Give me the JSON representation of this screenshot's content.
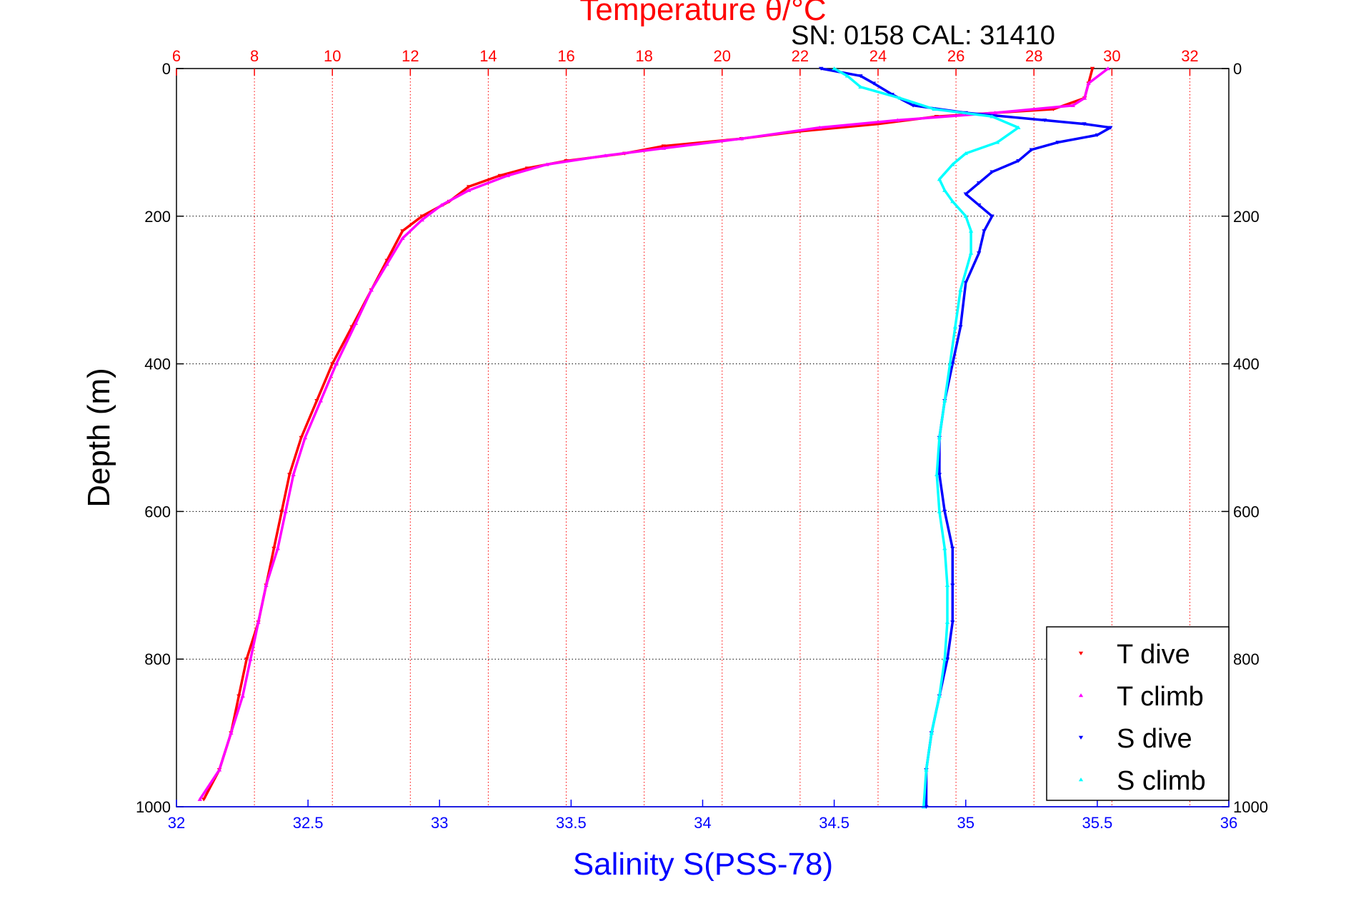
{
  "figure": {
    "title": "Temperature θ/°C",
    "subtitle": "SN: 0158  CAL: 31410"
  },
  "chart_data": {
    "type": "scatter",
    "title": "Temperature θ/°C",
    "subtitle": "SN: 0158  CAL: 31410",
    "ylabel": "Depth (m)",
    "xlabel_bottom": "Salinity S(PSS-78)",
    "xlabel_top": "Temperature θ/°C",
    "ylim": [
      0,
      1000
    ],
    "y_reversed": true,
    "xlim_salinity": [
      32,
      36
    ],
    "xlim_temperature": [
      6,
      33
    ],
    "grid": true,
    "legend_position": "bottom-right",
    "y_ticks": [
      "0",
      "200",
      "400",
      "600",
      "800",
      "1000"
    ],
    "x_ticks_bottom": [
      "32",
      "32.5",
      "33",
      "33.5",
      "34",
      "34.5",
      "35",
      "35.5",
      "36"
    ],
    "x_ticks_top": [
      "6",
      "8",
      "10",
      "12",
      "14",
      "16",
      "18",
      "20",
      "22",
      "24",
      "26",
      "28",
      "30",
      "32"
    ],
    "colors": {
      "temperature_axis": "#ff0000",
      "salinity_axis": "#0000ff",
      "t_dive": "#ff0000",
      "t_climb": "#ff00ff",
      "s_dive": "#0000ff",
      "s_climb": "#00ffff"
    },
    "series": [
      {
        "name": "T dive",
        "axis": "temperature",
        "marker": "triangle-down",
        "points": [
          [
            29.5,
            0
          ],
          [
            29.4,
            20
          ],
          [
            29.3,
            40
          ],
          [
            28.5,
            55
          ],
          [
            25.5,
            65
          ],
          [
            24.0,
            75
          ],
          [
            22.0,
            85
          ],
          [
            20.5,
            95
          ],
          [
            18.5,
            105
          ],
          [
            17.5,
            115
          ],
          [
            16.0,
            125
          ],
          [
            15.0,
            135
          ],
          [
            14.3,
            145
          ],
          [
            13.5,
            160
          ],
          [
            13.0,
            180
          ],
          [
            12.3,
            200
          ],
          [
            11.8,
            220
          ],
          [
            11.4,
            260
          ],
          [
            11.0,
            300
          ],
          [
            10.5,
            350
          ],
          [
            10.0,
            400
          ],
          [
            9.6,
            450
          ],
          [
            9.2,
            500
          ],
          [
            8.9,
            550
          ],
          [
            8.7,
            600
          ],
          [
            8.5,
            650
          ],
          [
            8.3,
            700
          ],
          [
            8.1,
            750
          ],
          [
            7.8,
            800
          ],
          [
            7.6,
            850
          ],
          [
            7.4,
            900
          ],
          [
            7.1,
            950
          ],
          [
            6.7,
            990
          ]
        ]
      },
      {
        "name": "T climb",
        "axis": "temperature",
        "marker": "triangle-up",
        "points": [
          [
            29.9,
            0
          ],
          [
            29.4,
            20
          ],
          [
            29.3,
            40
          ],
          [
            29.0,
            50
          ],
          [
            27.0,
            60
          ],
          [
            24.5,
            70
          ],
          [
            22.5,
            80
          ],
          [
            20.5,
            95
          ],
          [
            18.5,
            108
          ],
          [
            17.0,
            118
          ],
          [
            15.5,
            130
          ],
          [
            14.5,
            145
          ],
          [
            13.5,
            165
          ],
          [
            12.8,
            185
          ],
          [
            12.3,
            205
          ],
          [
            11.8,
            230
          ],
          [
            11.4,
            265
          ],
          [
            11.0,
            300
          ],
          [
            10.6,
            345
          ],
          [
            10.1,
            400
          ],
          [
            9.7,
            450
          ],
          [
            9.3,
            500
          ],
          [
            9.0,
            550
          ],
          [
            8.8,
            600
          ],
          [
            8.6,
            650
          ],
          [
            8.3,
            700
          ],
          [
            8.1,
            750
          ],
          [
            7.9,
            800
          ],
          [
            7.7,
            850
          ],
          [
            7.4,
            900
          ],
          [
            7.1,
            950
          ],
          [
            6.6,
            990
          ]
        ]
      },
      {
        "name": "S dive",
        "axis": "salinity",
        "marker": "triangle-down",
        "points": [
          [
            34.45,
            0
          ],
          [
            34.6,
            10
          ],
          [
            34.65,
            20
          ],
          [
            34.72,
            35
          ],
          [
            34.8,
            50
          ],
          [
            35.0,
            60
          ],
          [
            35.3,
            70
          ],
          [
            35.45,
            75
          ],
          [
            35.55,
            80
          ],
          [
            35.5,
            90
          ],
          [
            35.35,
            100
          ],
          [
            35.25,
            110
          ],
          [
            35.2,
            125
          ],
          [
            35.1,
            140
          ],
          [
            35.05,
            155
          ],
          [
            35.0,
            170
          ],
          [
            35.05,
            185
          ],
          [
            35.1,
            200
          ],
          [
            35.07,
            220
          ],
          [
            35.05,
            250
          ],
          [
            35.0,
            290
          ],
          [
            34.98,
            350
          ],
          [
            34.95,
            400
          ],
          [
            34.92,
            450
          ],
          [
            34.9,
            500
          ],
          [
            34.9,
            550
          ],
          [
            34.92,
            600
          ],
          [
            34.95,
            650
          ],
          [
            34.95,
            700
          ],
          [
            34.95,
            750
          ],
          [
            34.93,
            800
          ],
          [
            34.9,
            850
          ],
          [
            34.87,
            900
          ],
          [
            34.85,
            950
          ],
          [
            34.85,
            1000
          ]
        ]
      },
      {
        "name": "S climb",
        "axis": "salinity",
        "marker": "triangle-up",
        "points": [
          [
            34.5,
            0
          ],
          [
            34.55,
            10
          ],
          [
            34.6,
            25
          ],
          [
            34.75,
            40
          ],
          [
            34.88,
            55
          ],
          [
            35.1,
            65
          ],
          [
            35.2,
            80
          ],
          [
            35.12,
            100
          ],
          [
            35.0,
            115
          ],
          [
            34.95,
            130
          ],
          [
            34.9,
            150
          ],
          [
            34.92,
            165
          ],
          [
            34.95,
            180
          ],
          [
            35.0,
            200
          ],
          [
            35.02,
            220
          ],
          [
            35.02,
            250
          ],
          [
            34.98,
            300
          ],
          [
            34.96,
            350
          ],
          [
            34.94,
            400
          ],
          [
            34.92,
            450
          ],
          [
            34.9,
            500
          ],
          [
            34.89,
            550
          ],
          [
            34.9,
            600
          ],
          [
            34.92,
            650
          ],
          [
            34.93,
            700
          ],
          [
            34.93,
            750
          ],
          [
            34.92,
            800
          ],
          [
            34.9,
            850
          ],
          [
            34.87,
            900
          ],
          [
            34.85,
            950
          ],
          [
            34.84,
            1000
          ]
        ]
      }
    ]
  }
}
